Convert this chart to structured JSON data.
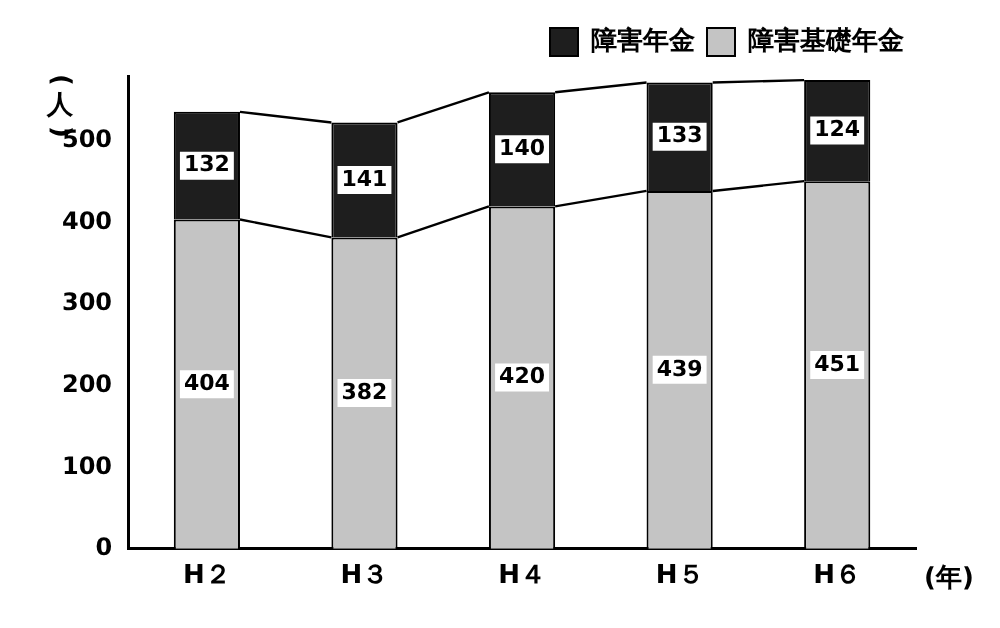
{
  "chart_data": {
    "type": "bar",
    "stacked": true,
    "categories": [
      "H２",
      "H３",
      "H４",
      "H５",
      "H６"
    ],
    "series": [
      {
        "name": "障害基礎年金",
        "color": "#c4c4c4",
        "values": [
          404,
          382,
          420,
          439,
          451
        ]
      },
      {
        "name": "障害年金",
        "color": "#1e1e1e",
        "values": [
          132,
          141,
          140,
          133,
          124
        ]
      }
    ],
    "ylabel": "(人)",
    "xlabel": "(年)",
    "ylim": [
      0,
      580
    ],
    "yticks": [
      0,
      100,
      200,
      300,
      400,
      500
    ],
    "data_labels": true,
    "legend": "top right",
    "grid": false
  }
}
